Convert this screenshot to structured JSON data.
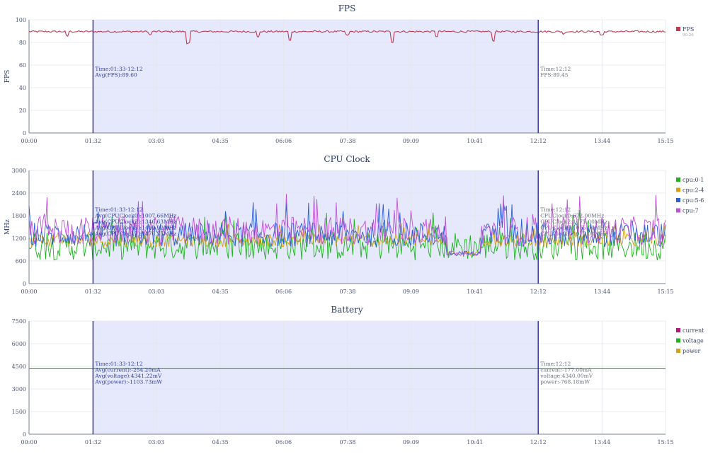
{
  "time_ticks": [
    "00:00",
    "01:32",
    "03:03",
    "04:35",
    "06:06",
    "07:38",
    "09:09",
    "10:41",
    "12:12",
    "13:44",
    "15:15"
  ],
  "colors": {
    "title": "#2b3a67",
    "selection_fill": "#e6e8fb",
    "marker": "#2a2a9a",
    "grid": "#e4e6ec",
    "axis": "#7a8193"
  },
  "chart_data": [
    {
      "id": "fps",
      "type": "line",
      "title": "FPS",
      "ylabel": "FPS",
      "ylim": [
        0,
        100
      ],
      "yticks": [
        0,
        20,
        40,
        60,
        80,
        100
      ],
      "series": [
        {
          "name": "FPS",
          "sub": "90.26",
          "color": "#c23a52",
          "base": 89.6,
          "noise": 0.8,
          "dips": [
            [
              0.06,
              4
            ],
            [
              0.19,
              3
            ],
            [
              0.25,
              10
            ],
            [
              0.36,
              5
            ],
            [
              0.41,
              8
            ],
            [
              0.5,
              3
            ],
            [
              0.57,
              9
            ],
            [
              0.64,
              4
            ],
            [
              0.73,
              8
            ],
            [
              0.84,
              2
            ],
            [
              0.9,
              3
            ]
          ]
        }
      ],
      "selection": {
        "start": "01:33",
        "end": "12:12"
      },
      "annotation_left": [
        "Time:01:33-12:12",
        "Avg(FPS):89.60"
      ],
      "annotation_right": [
        "Time:12:12",
        "FPS:89.45"
      ]
    },
    {
      "id": "cpu",
      "type": "line",
      "title": "CPU Clock",
      "ylabel": "MHz",
      "ylim": [
        0,
        3000
      ],
      "yticks": [
        0,
        600,
        1200,
        1800,
        2400,
        3000
      ],
      "series": [
        {
          "name": "cpu:0-1",
          "color": "#1db31d",
          "base": 1000,
          "noise": 380
        },
        {
          "name": "cpu:2-4",
          "color": "#d4a017",
          "base": 1150,
          "noise": 180
        },
        {
          "name": "cpu:5-6",
          "color": "#2a5fd6",
          "base": 1300,
          "noise": 330
        },
        {
          "name": "cpu:7",
          "color": "#c050d8",
          "base": 1400,
          "noise": 380
        }
      ],
      "selection": {
        "start": "01:33",
        "end": "12:12"
      },
      "annotation_left": [
        "Time:01:33-12:12",
        "Avg(CPUClock0):1007.66MHz",
        "Avg(CPUClock2):1346.63MHz",
        "Avg(CPUClock5):1419.92MHz",
        "Avg(CPUClock7):1476.35MHz"
      ],
      "annotation_right": [
        "Time:12:12",
        "CPUClock0:672.00MHz",
        "CPUClock2:1075.00MHz",
        "CPUClock5:1075.00MHz",
        "CPUClock7:1075.00MHz"
      ]
    },
    {
      "id": "battery",
      "type": "line",
      "title": "Battery",
      "ylabel": "",
      "ylim": [
        0,
        7500
      ],
      "yticks": [
        0,
        1500,
        3000,
        4500,
        6000,
        7500
      ],
      "series": [
        {
          "name": "current",
          "color": "#b0187a",
          "base": -254.2,
          "noise": 0
        },
        {
          "name": "voltage",
          "color": "#1db31d",
          "base": 4341.22,
          "noise": 1
        },
        {
          "name": "power",
          "color": "#d4a017",
          "base": -1103.73,
          "noise": 0
        }
      ],
      "selection": {
        "start": "01:33",
        "end": "12:12"
      },
      "annotation_left": [
        "Time:01:33-12:12",
        "Avg(current):-254.20mA",
        "Avg(voltage):4341.22mV",
        "Avg(power):-1103.73mW"
      ],
      "annotation_right": [
        "Time:12:12",
        "current:-177.00mA",
        "voltage:4340.00mV",
        "power:-768.18mW"
      ]
    }
  ]
}
